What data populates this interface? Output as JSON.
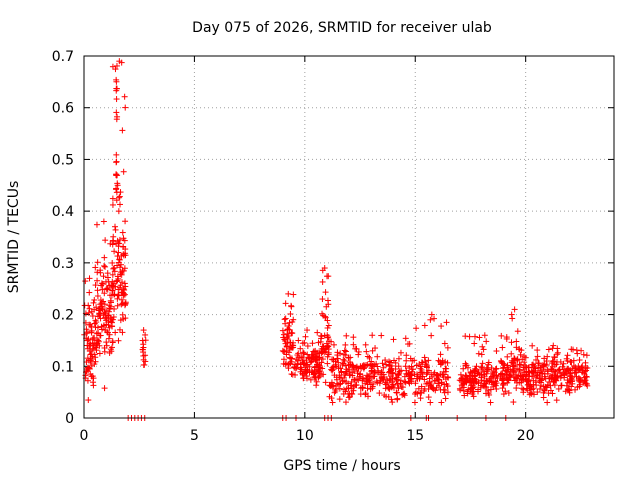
{
  "chart_data": {
    "type": "scatter",
    "title": "Day 075 of 2026, SRMTID for receiver ulab",
    "xlabel": "GPS time / hours",
    "ylabel": "SRMTID / TECUs",
    "xlim": [
      0,
      24
    ],
    "ylim": [
      0,
      0.7
    ],
    "xticks": [
      0,
      5,
      10,
      15,
      20
    ],
    "yticks": [
      0,
      0.1,
      0.2,
      0.3,
      0.4,
      0.5,
      0.6,
      0.7
    ],
    "xtick_labels": [
      "0",
      "5",
      "10",
      "15",
      "20"
    ],
    "ytick_labels": [
      "0",
      "0.1",
      "0.2",
      "0.3",
      "0.4",
      "0.5",
      "0.6",
      "0.7"
    ],
    "grid": true,
    "marker": "+",
    "color": "#ff0000",
    "series": [
      {
        "name": "SRMTID",
        "clusters": [
          {
            "t0": 0.0,
            "t1": 0.5,
            "n": 70,
            "base": 0.13,
            "spread": 0.06,
            "peak": 0.27
          },
          {
            "t0": 0.5,
            "t1": 1.3,
            "n": 120,
            "base": 0.2,
            "spread": 0.08,
            "peak": 0.38
          },
          {
            "t0": 1.3,
            "t1": 1.9,
            "n": 110,
            "base": 0.3,
            "spread": 0.12,
            "peak": 0.69
          },
          {
            "t0": 2.6,
            "t1": 2.8,
            "n": 14,
            "base": 0.13,
            "spread": 0.03,
            "peak": 0.17
          },
          {
            "t0": 9.0,
            "t1": 9.5,
            "n": 60,
            "base": 0.14,
            "spread": 0.05,
            "peak": 0.24
          },
          {
            "t0": 9.5,
            "t1": 10.7,
            "n": 120,
            "base": 0.1,
            "spread": 0.03,
            "peak": 0.17
          },
          {
            "t0": 10.7,
            "t1": 11.1,
            "n": 50,
            "base": 0.15,
            "spread": 0.06,
            "peak": 0.29
          },
          {
            "t0": 11.1,
            "t1": 15.0,
            "n": 320,
            "base": 0.08,
            "spread": 0.035,
            "peak": 0.16
          },
          {
            "t0": 15.0,
            "t1": 16.5,
            "n": 110,
            "base": 0.08,
            "spread": 0.035,
            "peak": 0.2
          },
          {
            "t0": 17.0,
            "t1": 19.3,
            "n": 200,
            "base": 0.08,
            "spread": 0.03,
            "peak": 0.16
          },
          {
            "t0": 19.3,
            "t1": 19.7,
            "n": 40,
            "base": 0.1,
            "spread": 0.04,
            "peak": 0.21
          },
          {
            "t0": 19.7,
            "t1": 22.8,
            "n": 280,
            "base": 0.08,
            "spread": 0.03,
            "peak": 0.14
          }
        ],
        "zero_points_hours": [
          2.0,
          2.15,
          2.3,
          2.45,
          2.6,
          2.75,
          9.0,
          9.15,
          9.6,
          10.9,
          11.05,
          11.2,
          14.8,
          15.5,
          15.6,
          16.9,
          18.2,
          19.1
        ]
      }
    ]
  }
}
